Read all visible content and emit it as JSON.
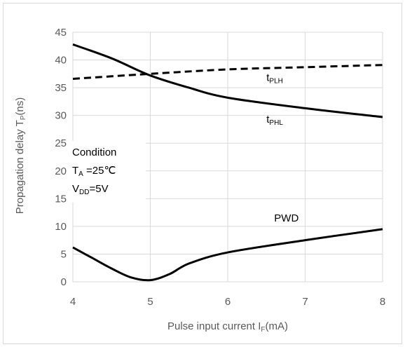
{
  "chart_data": {
    "type": "line",
    "xlabel": {
      "main": "Pulse input current I",
      "sub": "F",
      "tail": "(mA)"
    },
    "ylabel": {
      "main": "Propagation delay T",
      "sub": "P",
      "tail": "(ns)"
    },
    "xlim": [
      4,
      8
    ],
    "ylim": [
      0,
      45
    ],
    "xticks": [
      "4",
      "5",
      "6",
      "7",
      "8"
    ],
    "yticks": [
      "0",
      "5",
      "10",
      "15",
      "20",
      "25",
      "30",
      "35",
      "40",
      "45"
    ],
    "grid": "vertical",
    "series": [
      {
        "style": "dashed",
        "color": "#000000",
        "x": [
          4,
          5,
          6,
          7,
          8
        ],
        "y": [
          36.6,
          37.5,
          38.3,
          38.7,
          39.1
        ]
      },
      {
        "style": "solid",
        "color": "#000000",
        "x": [
          4,
          4.5,
          5,
          5.5,
          6,
          7,
          8
        ],
        "y": [
          42.8,
          40.3,
          37.2,
          35.0,
          33.2,
          31.3,
          29.7
        ]
      },
      {
        "style": "solid",
        "color": "#000000",
        "x": [
          4,
          4.25,
          4.5,
          4.75,
          5,
          5.25,
          5.5,
          6,
          7,
          8
        ],
        "y": [
          6.2,
          4.3,
          2.4,
          0.8,
          0.3,
          1.4,
          3.3,
          5.3,
          7.5,
          9.5
        ]
      }
    ],
    "series_labels": [
      {
        "main": "t",
        "sub": "PLH",
        "at": [
          6.5,
          36.2
        ]
      },
      {
        "main": "t",
        "sub": "PHL",
        "at": [
          6.5,
          28.7
        ]
      },
      {
        "main": "PWD",
        "sub": "",
        "at": [
          6.6,
          10.9
        ]
      }
    ],
    "condition": {
      "title": "Condition",
      "ta": {
        "main": "T",
        "sub": "A",
        "tail": " =25℃"
      },
      "vdd": {
        "main": "V",
        "sub": "DD",
        "tail": "=5V"
      }
    }
  }
}
